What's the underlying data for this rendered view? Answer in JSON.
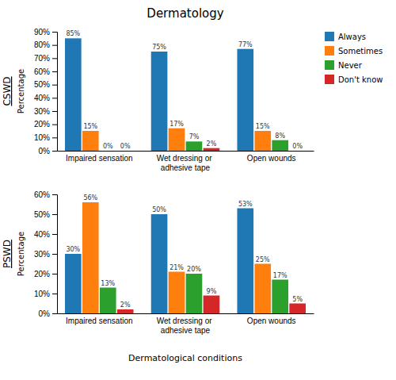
{
  "chart_data": [
    {
      "type": "bar",
      "title": "Dermatology",
      "ylabel": "Percentage",
      "annotations": [
        "CSWD"
      ],
      "categories": [
        "Impaired sensation",
        "Wet dressing or adhesive tape",
        "Open wounds"
      ],
      "series": [
        {
          "name": "Always",
          "values": [
            85,
            75,
            77
          ],
          "value_labels": [
            "85%",
            "75%",
            "77%"
          ]
        },
        {
          "name": "Sometimes",
          "values": [
            15,
            17,
            15
          ],
          "value_labels": [
            "15%",
            "17%",
            "15%"
          ]
        },
        {
          "name": "Never",
          "values": [
            0,
            7,
            8
          ],
          "value_labels": [
            "0%",
            "7%",
            "8%"
          ]
        },
        {
          "name": "Don't know",
          "values": [
            0,
            2,
            0
          ],
          "value_labels": [
            "0%",
            "2%",
            "0%"
          ]
        }
      ],
      "ylim": [
        0,
        90
      ],
      "yticks": [
        {
          "value": 0,
          "label": "0%"
        },
        {
          "value": 10,
          "label": "10%"
        },
        {
          "value": 20,
          "label": "20%"
        },
        {
          "value": 30,
          "label": "30%"
        },
        {
          "value": 40,
          "label": "40%"
        },
        {
          "value": 50,
          "label": "50%"
        },
        {
          "value": 60,
          "label": "60%"
        },
        {
          "value": 70,
          "label": "70%"
        },
        {
          "value": 80,
          "label": "80%"
        },
        {
          "value": 90,
          "label": "90%"
        }
      ],
      "data_labels": true,
      "grid": false,
      "legend": "right"
    },
    {
      "type": "bar",
      "xlabel": "Dermatological conditions",
      "ylabel": "Percentage",
      "annotations": [
        "PSWD"
      ],
      "categories": [
        "Impaired sensation",
        "Wet dressing or adhesive tape",
        "Open wounds"
      ],
      "series": [
        {
          "name": "Always",
          "values": [
            30,
            50,
            53
          ],
          "value_labels": [
            "30%",
            "50%",
            "53%"
          ]
        },
        {
          "name": "Sometimes",
          "values": [
            56,
            21,
            25
          ],
          "value_labels": [
            "56%",
            "21%",
            "25%"
          ]
        },
        {
          "name": "Never",
          "values": [
            13,
            20,
            17
          ],
          "value_labels": [
            "13%",
            "20%",
            "17%"
          ]
        },
        {
          "name": "Don't know",
          "values": [
            2,
            9,
            5
          ],
          "value_labels": [
            "2%",
            "9%",
            "5%"
          ]
        }
      ],
      "ylim": [
        0,
        60
      ],
      "yticks": [
        {
          "value": 0,
          "label": "0%"
        },
        {
          "value": 10,
          "label": "10%"
        },
        {
          "value": 20,
          "label": "20%"
        },
        {
          "value": 30,
          "label": "30%"
        },
        {
          "value": 40,
          "label": "40%"
        },
        {
          "value": 50,
          "label": "50%"
        },
        {
          "value": 60,
          "label": "60%"
        }
      ],
      "data_labels": true,
      "grid": false
    }
  ]
}
